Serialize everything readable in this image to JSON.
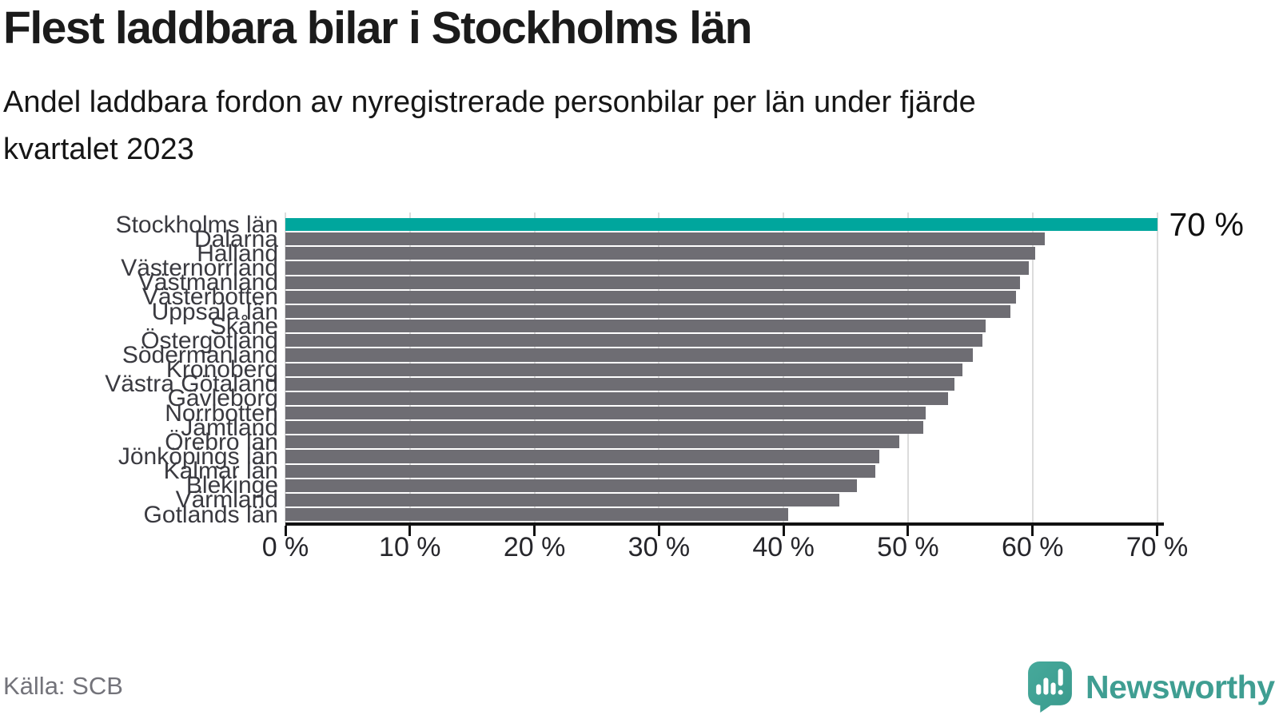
{
  "chart_data": {
    "type": "bar",
    "orientation": "horizontal",
    "title": "Flest laddbara bilar i Stockholms län",
    "subtitle_lines": [
      "Andel laddbara fordon av nyregistrerade personbilar per län under fjärde",
      "kvartalet 2023"
    ],
    "categories": [
      "Stockholms län",
      "Dalarna",
      "Halland",
      "Västernorrland",
      "Västmanland",
      "Västerbotten",
      "Uppsala län",
      "Skåne",
      "Östergötland",
      "Södermanland",
      "Kronoberg",
      "Västra Götaland",
      "Gävleborg",
      "Norrbotten",
      "Jämtland",
      "Örebro län",
      "Jönköpings län",
      "Kalmar län",
      "Blekinge",
      "Värmland",
      "Gotlands län"
    ],
    "values": [
      70,
      61,
      60.2,
      59.7,
      59,
      58.7,
      58.2,
      56.2,
      56,
      55.2,
      54.4,
      53.7,
      53.2,
      51.4,
      51.2,
      49.3,
      47.7,
      47.4,
      45.9,
      44.5,
      40.4
    ],
    "highlight": {
      "index": 0,
      "label": "70 %",
      "color": "#00a69d"
    },
    "bar_color": "#6e6d73",
    "gridline_color": "#dcdcdc",
    "grid": true,
    "legend": "none",
    "xlabel": "",
    "ylabel": "",
    "xlim": [
      0,
      70
    ],
    "xticks": [
      0,
      10,
      20,
      30,
      40,
      50,
      60,
      70
    ],
    "xtick_labels": [
      "0 %",
      "10 %",
      "20 %",
      "30 %",
      "40 %",
      "50 %",
      "60 %",
      "70 %"
    ]
  },
  "footer": {
    "source": "Källa: SCB",
    "brand": "Newsworthy",
    "brand_color": "#3f9e92"
  }
}
